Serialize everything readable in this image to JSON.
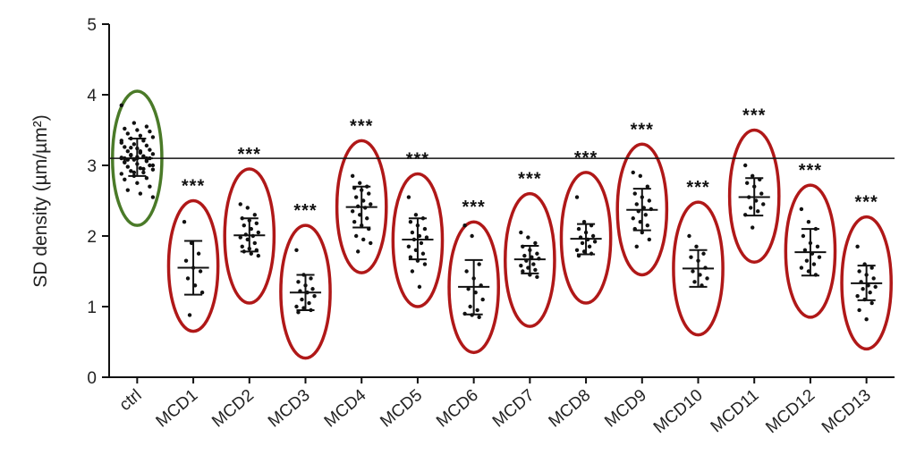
{
  "chart_data": {
    "type": "scatter",
    "subtype": "dot-plot with mean and SD bars",
    "ylabel": "SD density (µm/µm²)",
    "ylim": [
      0,
      5
    ],
    "yticks": [
      0,
      1,
      2,
      3,
      4,
      5
    ],
    "reference_line": 3.1,
    "categories": [
      "ctrl",
      "MCD1",
      "MCD2",
      "MCD3",
      "MCD4",
      "MCD5",
      "MCD6",
      "MCD7",
      "MCD8",
      "MCD9",
      "MCD10",
      "MCD11",
      "MCD12",
      "MCD13"
    ],
    "groups": [
      {
        "name": "ctrl",
        "mean": 3.1,
        "sd_low": 2.85,
        "sd_high": 3.38,
        "significance": "",
        "ellipse_color": "#4a7a28",
        "ellipse_range": [
          2.15,
          4.05
        ],
        "points": [
          3.85,
          3.6,
          3.55,
          3.52,
          3.5,
          3.48,
          3.45,
          3.42,
          3.4,
          3.38,
          3.35,
          3.32,
          3.3,
          3.28,
          3.26,
          3.24,
          3.22,
          3.2,
          3.18,
          3.16,
          3.14,
          3.12,
          3.1,
          3.08,
          3.06,
          3.04,
          3.02,
          3.0,
          2.98,
          2.96,
          2.94,
          2.92,
          2.9,
          2.88,
          2.85,
          2.82,
          2.8,
          2.75,
          2.7,
          2.65,
          2.6,
          2.55,
          3.15,
          3.13,
          3.11,
          3.09,
          3.07,
          3.05,
          3.12,
          3.1,
          3.08,
          3.2,
          3.0,
          3.25,
          2.95,
          3.35,
          2.9,
          3.1,
          3.1,
          3.1
        ]
      },
      {
        "name": "MCD1",
        "mean": 1.55,
        "sd_low": 1.17,
        "sd_high": 1.93,
        "significance": "***",
        "ellipse_color": "#b01818",
        "ellipse_range": [
          0.65,
          2.5
        ],
        "points": [
          2.2,
          1.9,
          1.75,
          1.65,
          1.55,
          1.5,
          1.4,
          1.3,
          1.2,
          0.88
        ]
      },
      {
        "name": "MCD2",
        "mean": 2.01,
        "sd_low": 1.78,
        "sd_high": 2.25,
        "significance": "***",
        "ellipse_color": "#b01818",
        "ellipse_range": [
          1.05,
          2.95
        ],
        "points": [
          2.45,
          2.4,
          2.3,
          2.25,
          2.22,
          2.18,
          2.15,
          2.1,
          2.05,
          2.02,
          2.0,
          1.98,
          1.95,
          1.9,
          1.85,
          1.82,
          1.8,
          1.78,
          1.75,
          1.72
        ]
      },
      {
        "name": "MCD3",
        "mean": 1.2,
        "sd_low": 0.95,
        "sd_high": 1.45,
        "significance": "***",
        "ellipse_color": "#b01818",
        "ellipse_range": [
          0.27,
          2.15
        ],
        "points": [
          1.8,
          1.45,
          1.4,
          1.35,
          1.3,
          1.25,
          1.22,
          1.2,
          1.15,
          1.1,
          1.05,
          1.0,
          0.98,
          0.95,
          0.92
        ]
      },
      {
        "name": "MCD4",
        "mean": 2.41,
        "sd_low": 2.12,
        "sd_high": 2.7,
        "significance": "***",
        "ellipse_color": "#b01818",
        "ellipse_range": [
          1.48,
          3.35
        ],
        "points": [
          2.85,
          2.75,
          2.7,
          2.68,
          2.65,
          2.6,
          2.55,
          2.5,
          2.45,
          2.42,
          2.4,
          2.35,
          2.3,
          2.25,
          2.2,
          2.15,
          2.1,
          2.0,
          1.95,
          1.9,
          1.78
        ]
      },
      {
        "name": "MCD5",
        "mean": 1.95,
        "sd_low": 1.67,
        "sd_high": 2.25,
        "significance": "***",
        "ellipse_color": "#b01818",
        "ellipse_range": [
          1.0,
          2.88
        ],
        "points": [
          2.55,
          2.3,
          2.25,
          2.2,
          2.15,
          2.1,
          2.05,
          2.0,
          1.98,
          1.95,
          1.9,
          1.85,
          1.8,
          1.75,
          1.7,
          1.65,
          1.6,
          1.5,
          1.28
        ]
      },
      {
        "name": "MCD6",
        "mean": 1.28,
        "sd_low": 0.89,
        "sd_high": 1.66,
        "significance": "***",
        "ellipse_color": "#b01818",
        "ellipse_range": [
          0.35,
          2.2
        ],
        "points": [
          2.15,
          2.0,
          1.6,
          1.5,
          1.4,
          1.3,
          1.25,
          1.2,
          1.1,
          1.0,
          0.95,
          0.9,
          0.88,
          0.85
        ]
      },
      {
        "name": "MCD7",
        "mean": 1.67,
        "sd_low": 1.47,
        "sd_high": 1.86,
        "significance": "***",
        "ellipse_color": "#b01818",
        "ellipse_range": [
          0.72,
          2.6
        ],
        "points": [
          2.05,
          1.98,
          1.9,
          1.85,
          1.8,
          1.75,
          1.72,
          1.7,
          1.68,
          1.65,
          1.6,
          1.58,
          1.55,
          1.52,
          1.5,
          1.45,
          1.42
        ]
      },
      {
        "name": "MCD8",
        "mean": 1.96,
        "sd_low": 1.74,
        "sd_high": 2.17,
        "significance": "***",
        "ellipse_color": "#b01818",
        "ellipse_range": [
          1.05,
          2.9
        ],
        "points": [
          2.55,
          2.2,
          2.15,
          2.1,
          2.05,
          2.0,
          1.98,
          1.95,
          1.92,
          1.9,
          1.85,
          1.8,
          1.78,
          1.75,
          1.72
        ]
      },
      {
        "name": "MCD9",
        "mean": 2.37,
        "sd_low": 2.08,
        "sd_high": 2.67,
        "significance": "***",
        "ellipse_color": "#b01818",
        "ellipse_range": [
          1.45,
          3.3
        ],
        "points": [
          2.9,
          2.85,
          2.7,
          2.6,
          2.55,
          2.5,
          2.45,
          2.4,
          2.38,
          2.35,
          2.3,
          2.25,
          2.2,
          2.15,
          2.1,
          2.05,
          1.95,
          1.85
        ]
      },
      {
        "name": "MCD10",
        "mean": 1.54,
        "sd_low": 1.28,
        "sd_high": 1.8,
        "significance": "***",
        "ellipse_color": "#b01818",
        "ellipse_range": [
          0.6,
          2.48
        ],
        "points": [
          2.0,
          1.85,
          1.75,
          1.7,
          1.65,
          1.55,
          1.5,
          1.45,
          1.4,
          1.35,
          1.3
        ]
      },
      {
        "name": "MCD11",
        "mean": 2.55,
        "sd_low": 2.29,
        "sd_high": 2.82,
        "significance": "***",
        "ellipse_color": "#b01818",
        "ellipse_range": [
          1.63,
          3.5
        ],
        "points": [
          3.0,
          2.85,
          2.8,
          2.75,
          2.7,
          2.6,
          2.55,
          2.5,
          2.45,
          2.4,
          2.35,
          2.3,
          2.12
        ]
      },
      {
        "name": "MCD12",
        "mean": 1.77,
        "sd_low": 1.44,
        "sd_high": 2.1,
        "significance": "***",
        "ellipse_color": "#b01818",
        "ellipse_range": [
          0.85,
          2.72
        ],
        "points": [
          2.38,
          2.2,
          2.1,
          2.0,
          1.9,
          1.85,
          1.8,
          1.75,
          1.7,
          1.65,
          1.6,
          1.55,
          1.5,
          1.45
        ]
      },
      {
        "name": "MCD13",
        "mean": 1.33,
        "sd_low": 1.09,
        "sd_high": 1.58,
        "significance": "***",
        "ellipse_color": "#b01818",
        "ellipse_range": [
          0.4,
          2.27
        ],
        "points": [
          1.85,
          1.6,
          1.55,
          1.5,
          1.45,
          1.4,
          1.35,
          1.3,
          1.28,
          1.25,
          1.2,
          1.15,
          1.1,
          1.05,
          0.95,
          0.82
        ]
      }
    ]
  }
}
